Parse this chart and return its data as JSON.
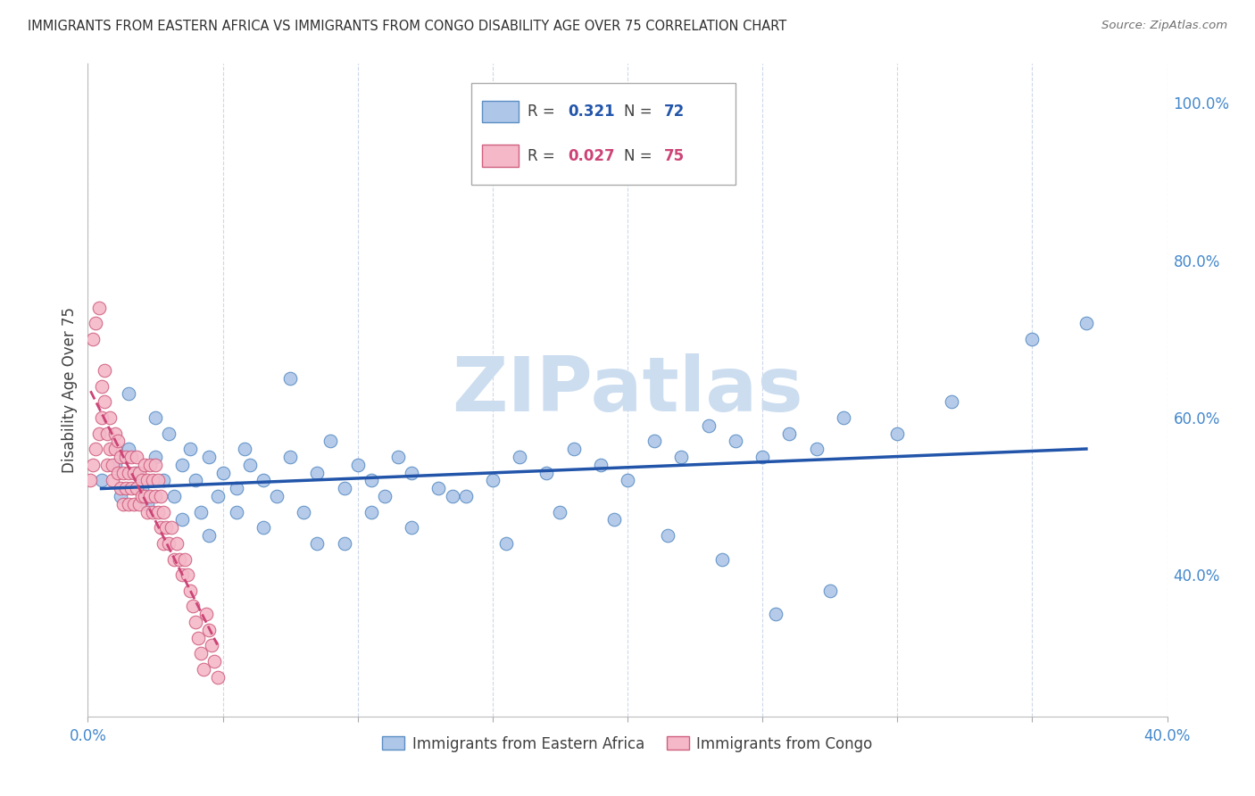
{
  "title": "IMMIGRANTS FROM EASTERN AFRICA VS IMMIGRANTS FROM CONGO DISABILITY AGE OVER 75 CORRELATION CHART",
  "source": "Source: ZipAtlas.com",
  "ylabel": "Disability Age Over 75",
  "legend_label_blue": "Immigrants from Eastern Africa",
  "legend_label_pink": "Immigrants from Congo",
  "watermark": "ZIPatlas",
  "blue_color": "#aec6e8",
  "blue_edge_color": "#5b8ec4",
  "blue_line_color": "#2255aa",
  "pink_color": "#f4b8c8",
  "pink_edge_color": "#d06080",
  "pink_line_color": "#cc4477",
  "background_color": "#ffffff",
  "grid_color": "#c8d4e8",
  "title_color": "#303030",
  "axis_label_color": "#4488cc",
  "ylabel_color": "#404040",
  "r_label_color": "#404040",
  "watermark_color": "#ccddf0",
  "xlim": [
    0.0,
    0.4
  ],
  "ylim": [
    0.22,
    1.05
  ],
  "yticks": [
    0.4,
    0.6,
    0.8,
    1.0
  ],
  "ytick_labels": [
    "40.0%",
    "60.0%",
    "80.0%",
    "100.0%"
  ],
  "blue_r": "0.321",
  "blue_n": "72",
  "pink_r": "0.027",
  "pink_n": "75",
  "blue_scatter_x": [
    0.005,
    0.01,
    0.012,
    0.015,
    0.018,
    0.02,
    0.022,
    0.025,
    0.028,
    0.03,
    0.032,
    0.035,
    0.038,
    0.04,
    0.042,
    0.045,
    0.048,
    0.05,
    0.055,
    0.058,
    0.06,
    0.065,
    0.07,
    0.075,
    0.08,
    0.085,
    0.09,
    0.095,
    0.1,
    0.105,
    0.11,
    0.115,
    0.12,
    0.13,
    0.14,
    0.15,
    0.16,
    0.17,
    0.18,
    0.19,
    0.2,
    0.21,
    0.22,
    0.23,
    0.24,
    0.25,
    0.26,
    0.27,
    0.28,
    0.3,
    0.32,
    0.35,
    0.37,
    0.015,
    0.025,
    0.035,
    0.045,
    0.055,
    0.065,
    0.075,
    0.085,
    0.095,
    0.105,
    0.12,
    0.135,
    0.155,
    0.175,
    0.195,
    0.215,
    0.235,
    0.255,
    0.275
  ],
  "blue_scatter_y": [
    0.52,
    0.54,
    0.5,
    0.56,
    0.53,
    0.51,
    0.49,
    0.55,
    0.52,
    0.58,
    0.5,
    0.54,
    0.56,
    0.52,
    0.48,
    0.55,
    0.5,
    0.53,
    0.51,
    0.56,
    0.54,
    0.52,
    0.5,
    0.55,
    0.48,
    0.53,
    0.57,
    0.51,
    0.54,
    0.52,
    0.5,
    0.55,
    0.53,
    0.51,
    0.5,
    0.52,
    0.55,
    0.53,
    0.56,
    0.54,
    0.52,
    0.57,
    0.55,
    0.59,
    0.57,
    0.55,
    0.58,
    0.56,
    0.6,
    0.58,
    0.62,
    0.7,
    0.72,
    0.63,
    0.6,
    0.47,
    0.45,
    0.48,
    0.46,
    0.65,
    0.44,
    0.44,
    0.48,
    0.46,
    0.5,
    0.44,
    0.48,
    0.47,
    0.45,
    0.42,
    0.35,
    0.38
  ],
  "pink_scatter_x": [
    0.001,
    0.002,
    0.002,
    0.003,
    0.003,
    0.004,
    0.004,
    0.005,
    0.005,
    0.006,
    0.006,
    0.007,
    0.007,
    0.008,
    0.008,
    0.009,
    0.009,
    0.01,
    0.01,
    0.011,
    0.011,
    0.012,
    0.012,
    0.013,
    0.013,
    0.014,
    0.014,
    0.015,
    0.015,
    0.016,
    0.016,
    0.017,
    0.017,
    0.018,
    0.018,
    0.019,
    0.019,
    0.02,
    0.02,
    0.021,
    0.021,
    0.022,
    0.022,
    0.023,
    0.023,
    0.024,
    0.024,
    0.025,
    0.025,
    0.026,
    0.026,
    0.027,
    0.027,
    0.028,
    0.028,
    0.029,
    0.03,
    0.031,
    0.032,
    0.033,
    0.034,
    0.035,
    0.036,
    0.037,
    0.038,
    0.039,
    0.04,
    0.041,
    0.042,
    0.043,
    0.044,
    0.045,
    0.046,
    0.047,
    0.048
  ],
  "pink_scatter_y": [
    0.52,
    0.7,
    0.54,
    0.72,
    0.56,
    0.74,
    0.58,
    0.64,
    0.6,
    0.66,
    0.62,
    0.54,
    0.58,
    0.56,
    0.6,
    0.52,
    0.54,
    0.56,
    0.58,
    0.53,
    0.57,
    0.55,
    0.51,
    0.53,
    0.49,
    0.55,
    0.51,
    0.53,
    0.49,
    0.55,
    0.51,
    0.53,
    0.49,
    0.55,
    0.51,
    0.53,
    0.49,
    0.52,
    0.5,
    0.54,
    0.5,
    0.52,
    0.48,
    0.54,
    0.5,
    0.52,
    0.48,
    0.54,
    0.5,
    0.52,
    0.48,
    0.46,
    0.5,
    0.48,
    0.44,
    0.46,
    0.44,
    0.46,
    0.42,
    0.44,
    0.42,
    0.4,
    0.42,
    0.4,
    0.38,
    0.36,
    0.34,
    0.32,
    0.3,
    0.28,
    0.35,
    0.33,
    0.31,
    0.29,
    0.27
  ]
}
